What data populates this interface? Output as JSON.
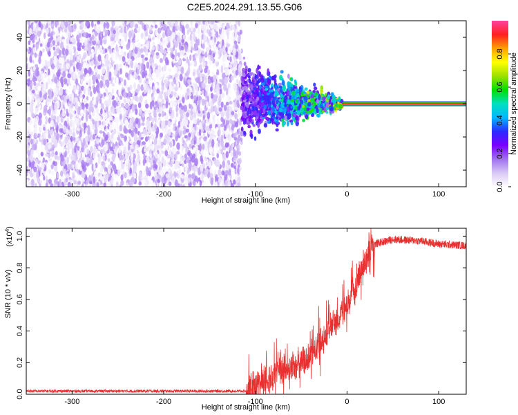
{
  "title": "C2E5.2024.291.13.55.G06",
  "chart_data": [
    {
      "type": "heatmap",
      "xlabel": "Height of straight line (km)",
      "ylabel": "Frequency (Hz)",
      "xlim": [
        -350,
        130
      ],
      "ylim": [
        -50,
        50
      ],
      "x_ticks": [
        -300,
        -200,
        -100,
        0,
        100
      ],
      "y_ticks": [
        -40,
        -20,
        0,
        20,
        40
      ],
      "data_extent_x": [
        -350,
        -115
      ],
      "signal": {
        "line_frequency_hz": 0,
        "noise_region_x": [
          -350,
          -115
        ],
        "scatter_region_x": [
          -115,
          -5
        ],
        "steady_region_x": [
          -5,
          130
        ]
      },
      "colorbar": {
        "label": "Normalized spectral amplitude",
        "range": [
          0,
          1
        ],
        "ticks": [
          0.0,
          0.2,
          0.4,
          0.6,
          0.8
        ],
        "colors": [
          "#ffffff",
          "#d9c8f5",
          "#a070f0",
          "#7a00ff",
          "#2a2aff",
          "#00b8ff",
          "#00e0c0",
          "#00e000",
          "#9ee000",
          "#ffff00",
          "#ffa000",
          "#ff2020",
          "#ff40a0"
        ]
      },
      "grid": false
    },
    {
      "type": "line",
      "xlabel": "Height of straight line (km)",
      "ylabel": "SNR (10 * v/v)",
      "multiplier_label": "(x10",
      "multiplier_exp": "4",
      "multiplier_close": ")",
      "xlim": [
        -350,
        130
      ],
      "ylim": [
        0,
        1.05
      ],
      "x_ticks": [
        -300,
        -200,
        -100,
        0,
        100
      ],
      "y_ticks": [
        0.0,
        0.2,
        0.4,
        0.6,
        0.8,
        1.0
      ],
      "color": "#e83030",
      "trend": {
        "x": [
          -350,
          -110,
          -100,
          -80,
          -60,
          -40,
          -30,
          -20,
          -10,
          0,
          10,
          20,
          30,
          50,
          80,
          100,
          130
        ],
        "y": [
          0.02,
          0.02,
          0.06,
          0.12,
          0.17,
          0.24,
          0.33,
          0.41,
          0.48,
          0.55,
          0.7,
          0.86,
          0.95,
          0.98,
          0.97,
          0.95,
          0.94
        ]
      },
      "grid": false
    }
  ]
}
